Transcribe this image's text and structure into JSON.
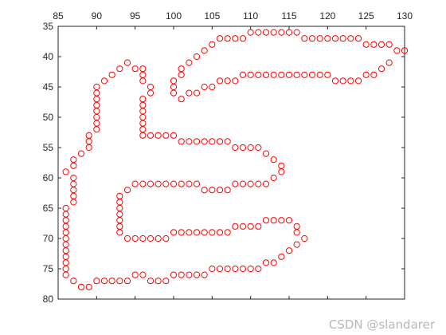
{
  "chart_data": {
    "type": "scatter",
    "title": "",
    "xlabel": "",
    "ylabel": "",
    "xlim": [
      85,
      130
    ],
    "ylim": [
      35,
      80
    ],
    "y_axis_reversed": true,
    "x_axis_location": "top",
    "xticks": [
      "85",
      "90",
      "95",
      "100",
      "105",
      "110",
      "115",
      "120",
      "125",
      "130"
    ],
    "yticks": [
      "35",
      "40",
      "45",
      "50",
      "55",
      "60",
      "65",
      "70",
      "75",
      "80"
    ],
    "grid": false,
    "legend": "none",
    "marker": "open-circle",
    "marker_color": "#ff0000",
    "points": [
      [
        86,
        59
      ],
      [
        87,
        58
      ],
      [
        87,
        57
      ],
      [
        88,
        56
      ],
      [
        89,
        55
      ],
      [
        89,
        54
      ],
      [
        89,
        53
      ],
      [
        90,
        52
      ],
      [
        90,
        51
      ],
      [
        90,
        50
      ],
      [
        90,
        49
      ],
      [
        90,
        48
      ],
      [
        90,
        47
      ],
      [
        90,
        46
      ],
      [
        90,
        45
      ],
      [
        91,
        44
      ],
      [
        92,
        43
      ],
      [
        93,
        42
      ],
      [
        94,
        41
      ],
      [
        95,
        42
      ],
      [
        96,
        42
      ],
      [
        96,
        43
      ],
      [
        96,
        44
      ],
      [
        97,
        45
      ],
      [
        97,
        46
      ],
      [
        96,
        47
      ],
      [
        96,
        48
      ],
      [
        96,
        49
      ],
      [
        96,
        50
      ],
      [
        96,
        51
      ],
      [
        96,
        52
      ],
      [
        96,
        53
      ],
      [
        97,
        53
      ],
      [
        98,
        53
      ],
      [
        99,
        53
      ],
      [
        100,
        53
      ],
      [
        101,
        54
      ],
      [
        102,
        54
      ],
      [
        103,
        54
      ],
      [
        104,
        54
      ],
      [
        105,
        54
      ],
      [
        106,
        54
      ],
      [
        107,
        54
      ],
      [
        108,
        55
      ],
      [
        109,
        55
      ],
      [
        110,
        55
      ],
      [
        111,
        55
      ],
      [
        112,
        56
      ],
      [
        113,
        57
      ],
      [
        114,
        58
      ],
      [
        114,
        59
      ],
      [
        113,
        60
      ],
      [
        112,
        61
      ],
      [
        111,
        61
      ],
      [
        110,
        61
      ],
      [
        109,
        61
      ],
      [
        108,
        61
      ],
      [
        107,
        62
      ],
      [
        106,
        62
      ],
      [
        105,
        62
      ],
      [
        104,
        62
      ],
      [
        103,
        61
      ],
      [
        102,
        61
      ],
      [
        101,
        61
      ],
      [
        100,
        61
      ],
      [
        99,
        61
      ],
      [
        98,
        61
      ],
      [
        97,
        61
      ],
      [
        96,
        61
      ],
      [
        95,
        61
      ],
      [
        94,
        62
      ],
      [
        93,
        63
      ],
      [
        93,
        64
      ],
      [
        93,
        65
      ],
      [
        93,
        66
      ],
      [
        93,
        67
      ],
      [
        93,
        68
      ],
      [
        93,
        69
      ],
      [
        94,
        70
      ],
      [
        95,
        70
      ],
      [
        96,
        70
      ],
      [
        97,
        70
      ],
      [
        98,
        70
      ],
      [
        99,
        70
      ],
      [
        100,
        69
      ],
      [
        101,
        69
      ],
      [
        102,
        69
      ],
      [
        103,
        69
      ],
      [
        104,
        69
      ],
      [
        105,
        69
      ],
      [
        106,
        69
      ],
      [
        107,
        69
      ],
      [
        108,
        68
      ],
      [
        109,
        68
      ],
      [
        110,
        68
      ],
      [
        111,
        68
      ],
      [
        112,
        67
      ],
      [
        113,
        67
      ],
      [
        114,
        67
      ],
      [
        115,
        67
      ],
      [
        116,
        68
      ],
      [
        116,
        69
      ],
      [
        117,
        70
      ],
      [
        116,
        71
      ],
      [
        115,
        72
      ],
      [
        114,
        73
      ],
      [
        113,
        74
      ],
      [
        112,
        74
      ],
      [
        111,
        75
      ],
      [
        110,
        75
      ],
      [
        109,
        75
      ],
      [
        108,
        75
      ],
      [
        107,
        75
      ],
      [
        106,
        75
      ],
      [
        105,
        75
      ],
      [
        104,
        76
      ],
      [
        103,
        76
      ],
      [
        102,
        76
      ],
      [
        101,
        76
      ],
      [
        100,
        76
      ],
      [
        99,
        77
      ],
      [
        98,
        77
      ],
      [
        97,
        77
      ],
      [
        96,
        76
      ],
      [
        95,
        76
      ],
      [
        94,
        77
      ],
      [
        93,
        77
      ],
      [
        92,
        77
      ],
      [
        91,
        77
      ],
      [
        90,
        77
      ],
      [
        89,
        78
      ],
      [
        88,
        78
      ],
      [
        87,
        77
      ],
      [
        86,
        76
      ],
      [
        86,
        75
      ],
      [
        86,
        74
      ],
      [
        86,
        73
      ],
      [
        86,
        72
      ],
      [
        86,
        71
      ],
      [
        86,
        70
      ],
      [
        86,
        69
      ],
      [
        86,
        68
      ],
      [
        86,
        67
      ],
      [
        86,
        66
      ],
      [
        86,
        65
      ],
      [
        87,
        64
      ],
      [
        87,
        63
      ],
      [
        87,
        62
      ],
      [
        87,
        61
      ],
      [
        87,
        60
      ],
      [
        100,
        44
      ],
      [
        100,
        45
      ],
      [
        100,
        46
      ],
      [
        101,
        47
      ],
      [
        102,
        46
      ],
      [
        103,
        46
      ],
      [
        104,
        45
      ],
      [
        105,
        45
      ],
      [
        106,
        44
      ],
      [
        107,
        44
      ],
      [
        108,
        44
      ],
      [
        109,
        43
      ],
      [
        110,
        43
      ],
      [
        111,
        43
      ],
      [
        112,
        43
      ],
      [
        113,
        43
      ],
      [
        114,
        43
      ],
      [
        115,
        43
      ],
      [
        116,
        43
      ],
      [
        117,
        43
      ],
      [
        118,
        43
      ],
      [
        119,
        43
      ],
      [
        120,
        43
      ],
      [
        121,
        44
      ],
      [
        122,
        44
      ],
      [
        123,
        44
      ],
      [
        124,
        44
      ],
      [
        125,
        43
      ],
      [
        126,
        43
      ],
      [
        127,
        42
      ],
      [
        128,
        41
      ],
      [
        129,
        39
      ],
      [
        130,
        39
      ],
      [
        128,
        38
      ],
      [
        127,
        38
      ],
      [
        126,
        38
      ],
      [
        125,
        38
      ],
      [
        124,
        37
      ],
      [
        123,
        37
      ],
      [
        122,
        37
      ],
      [
        121,
        37
      ],
      [
        120,
        37
      ],
      [
        119,
        37
      ],
      [
        118,
        37
      ],
      [
        117,
        37
      ],
      [
        116,
        36
      ],
      [
        115,
        36
      ],
      [
        114,
        36
      ],
      [
        113,
        36
      ],
      [
        112,
        36
      ],
      [
        111,
        36
      ],
      [
        110,
        36
      ],
      [
        109,
        37
      ],
      [
        108,
        37
      ],
      [
        107,
        37
      ],
      [
        106,
        37
      ],
      [
        105,
        38
      ],
      [
        104,
        39
      ],
      [
        103,
        40
      ],
      [
        102,
        41
      ],
      [
        101,
        42
      ],
      [
        101,
        43
      ]
    ]
  },
  "watermark": "CSDN @slandarer"
}
